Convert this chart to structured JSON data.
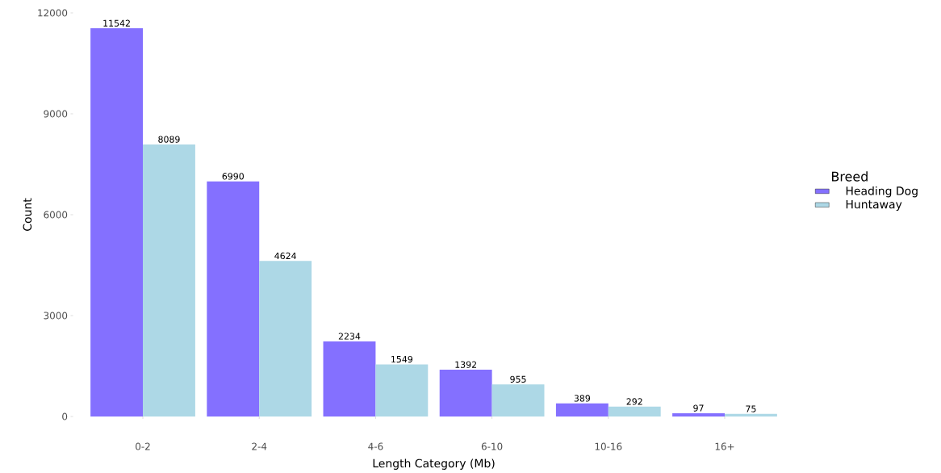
{
  "chart_data": {
    "type": "bar",
    "xlabel": "Length Category (Mb)",
    "ylabel": "Count",
    "legend_title": "Breed",
    "categories": [
      "0-2",
      "2-4",
      "4-6",
      "6-10",
      "10-16",
      "16+"
    ],
    "series": [
      {
        "name": "Heading Dog",
        "color": "#8470ff",
        "values": [
          11542,
          6990,
          2234,
          1392,
          389,
          97
        ]
      },
      {
        "name": "Huntaway",
        "color": "#add8e6",
        "values": [
          8089,
          4624,
          1549,
          955,
          292,
          75
        ]
      }
    ],
    "ylim": [
      0,
      12000
    ],
    "yticks": [
      0,
      3000,
      6000,
      9000,
      12000
    ],
    "data_labels": true,
    "grid": false,
    "legend": "right"
  }
}
